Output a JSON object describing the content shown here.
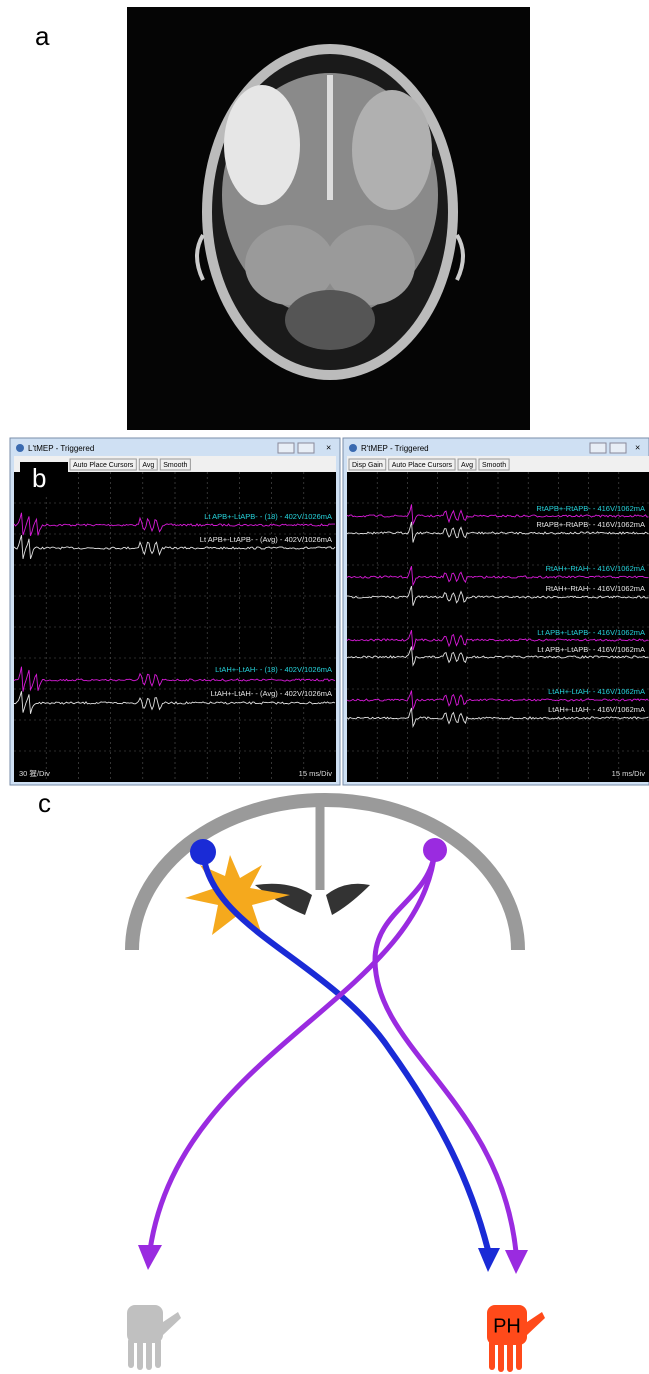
{
  "panels": {
    "a": {
      "label": "a"
    },
    "b": {
      "label": "b",
      "left_window": {
        "title": "L'tMEP - Triggered",
        "buttons": [
          "Auto Place Cursors",
          "Avg",
          "Smooth"
        ],
        "traces": [
          "Lt APB+-LtAPB- - (18) - 402V/1026mA",
          "Lt APB+-LtAPB- - (Avg) - 402V/1026mA",
          "LtAH+-LtAH- - (18) - 402V/1026mA",
          "LtAH+-LtAH- - (Avg) - 402V/1026mA"
        ],
        "scale_left": "30 猩/Div",
        "scale_right": "15 ms/Div"
      },
      "right_window": {
        "title": "R'tMEP - Triggered",
        "buttons": [
          "Disp Gain",
          "Auto Place Cursors",
          "Avg",
          "Smooth"
        ],
        "traces": [
          "RtAPB+-RtAPB- - 416V/1062mA",
          "RtAPB+-RtAPB- - 416V/1062mA",
          "RtAH+-RtAH- - 416V/1062mA",
          "RtAH+-RtAH- - 416V/1062mA",
          "Lt APB+-LtAPB- - 416V/1062mA",
          "Lt APB+-LtAPB- - 416V/1062mA",
          "LtAH+-LtAH- - 416V/1062mA",
          "LtAH+-LtAH- - 416V/1062mA"
        ],
        "scale_right": "15 ms/Div"
      }
    },
    "c": {
      "label": "c",
      "hand_label": "PH"
    }
  }
}
